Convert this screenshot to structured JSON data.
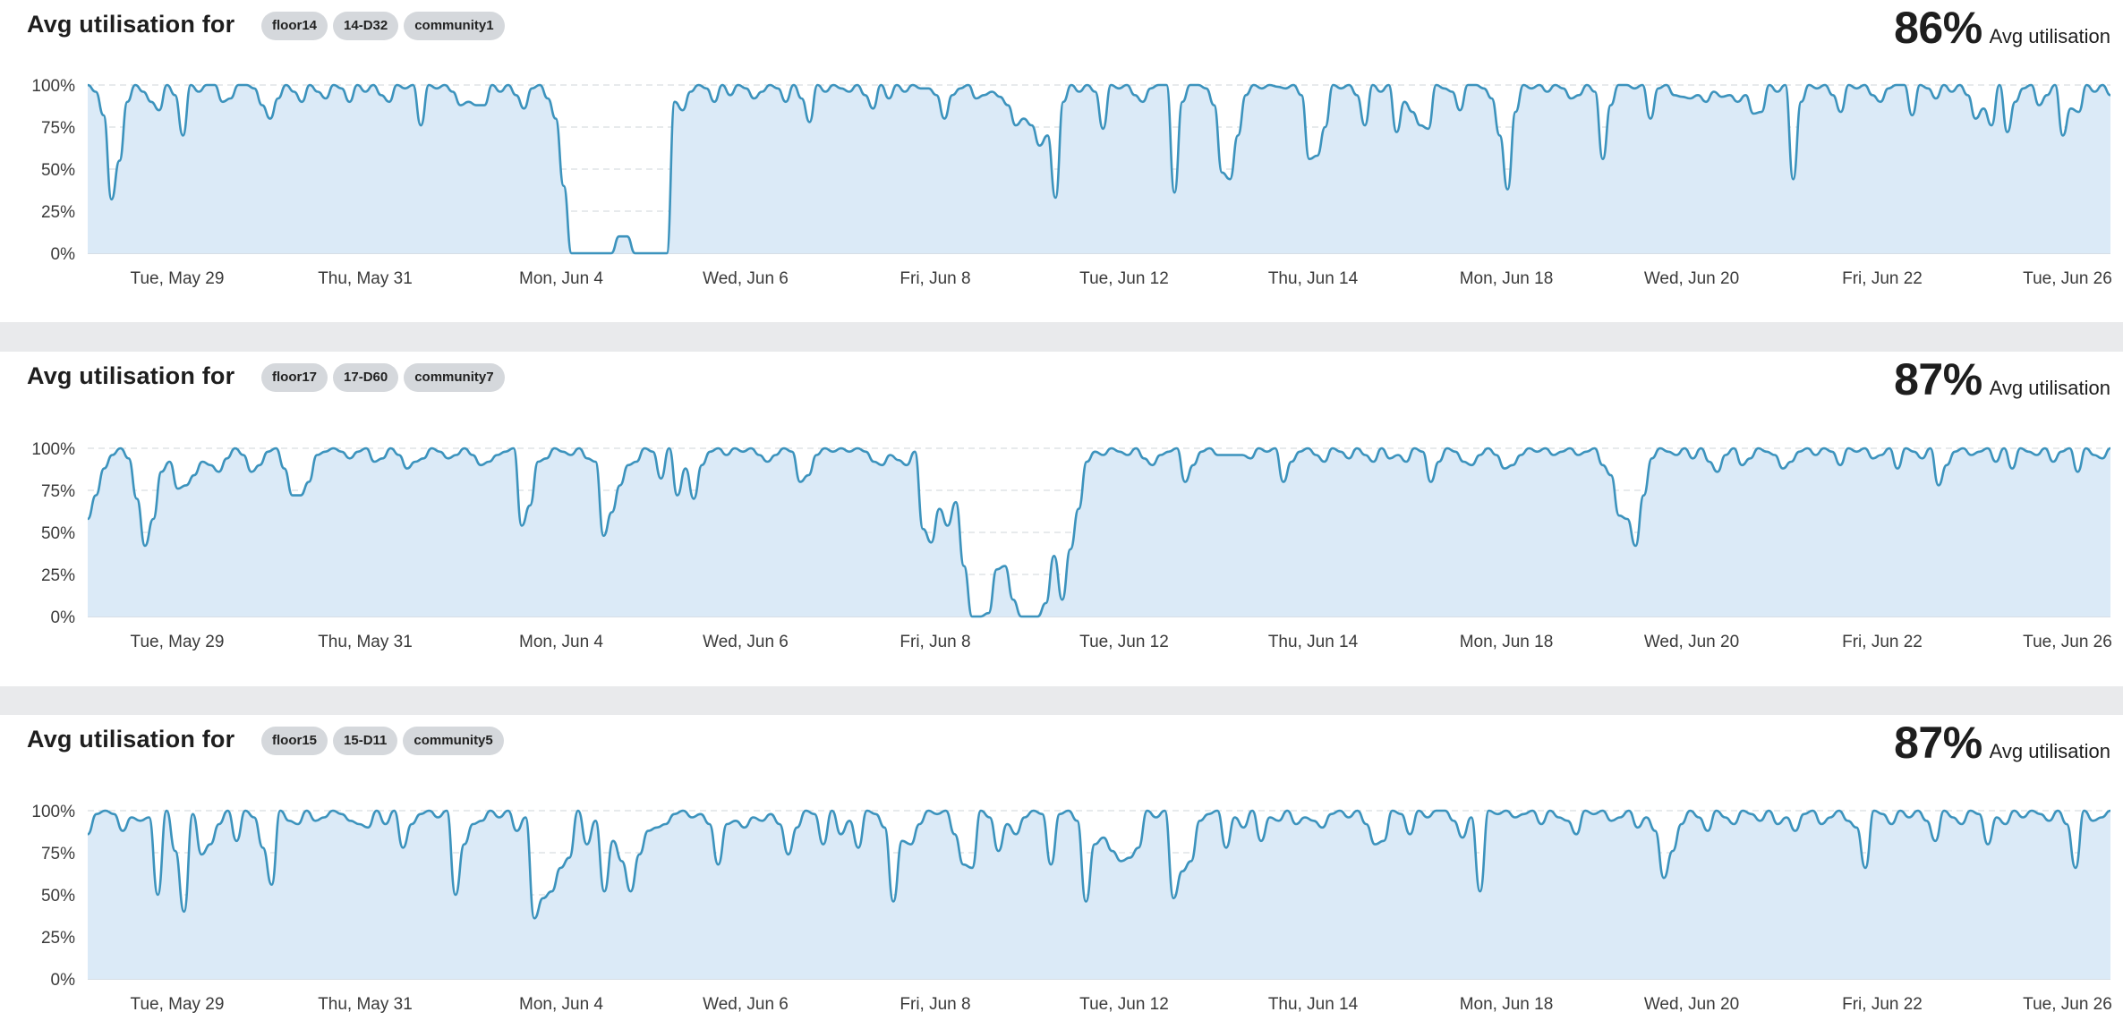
{
  "panels": [
    {
      "title": "Avg utilisation for",
      "tags": [
        "floor14",
        "14-D32",
        "community1"
      ],
      "stat_value": "86%",
      "stat_label": "Avg utilisation"
    },
    {
      "title": "Avg utilisation for",
      "tags": [
        "floor17",
        "17-D60",
        "community7"
      ],
      "stat_value": "87%",
      "stat_label": "Avg utilisation"
    },
    {
      "title": "Avg utilisation for",
      "tags": [
        "floor15",
        "15-D11",
        "community5"
      ],
      "stat_value": "87%",
      "stat_label": "Avg utilisation"
    }
  ],
  "colors": {
    "line": "#3c93bd",
    "fill": "#dbeaf7",
    "grid": "#cfd4d9",
    "background": "#ffffff",
    "separator": "#e9eaec"
  },
  "chart_data": [
    {
      "type": "area",
      "ylim": [
        0,
        100
      ],
      "yticks": [
        "0%",
        "25%",
        "50%",
        "75%",
        "100%"
      ],
      "xticks": [
        "Tue, May 29",
        "Thu, May 31",
        "Mon, Jun 4",
        "Wed, Jun 6",
        "Fri, Jun 8",
        "Tue, Jun 12",
        "Thu, Jun 14",
        "Mon, Jun 18",
        "Wed, Jun 20",
        "Fri, Jun 22",
        "Tue, Jun 26"
      ],
      "grid": true,
      "values": [
        100,
        96,
        82,
        32,
        55,
        90,
        100,
        96,
        90,
        85,
        100,
        94,
        70,
        100,
        96,
        100,
        100,
        90,
        92,
        100,
        100,
        98,
        88,
        80,
        92,
        100,
        96,
        90,
        100,
        96,
        92,
        100,
        98,
        90,
        100,
        96,
        100,
        94,
        90,
        100,
        98,
        100,
        76,
        100,
        98,
        100,
        96,
        88,
        90,
        88,
        88,
        100,
        96,
        100,
        94,
        86,
        98,
        100,
        92,
        80,
        40,
        0,
        0,
        0,
        0,
        0,
        0,
        10,
        10,
        0,
        0,
        0,
        0,
        0,
        90,
        85,
        96,
        100,
        98,
        90,
        100,
        94,
        100,
        98,
        92,
        96,
        100,
        98,
        90,
        100,
        92,
        78,
        100,
        96,
        100,
        98,
        96,
        100,
        94,
        86,
        100,
        92,
        100,
        96,
        100,
        98,
        98,
        94,
        80,
        94,
        98,
        100,
        92,
        94,
        96,
        93,
        88,
        76,
        80,
        76,
        64,
        70,
        33,
        90,
        100,
        96,
        100,
        96,
        74,
        100,
        98,
        100,
        94,
        90,
        98,
        100,
        100,
        36,
        90,
        100,
        100,
        98,
        88,
        48,
        44,
        70,
        94,
        100,
        98,
        100,
        99,
        98,
        100,
        94,
        56,
        58,
        75,
        100,
        98,
        100,
        94,
        76,
        100,
        96,
        100,
        72,
        90,
        84,
        76,
        74,
        100,
        98,
        96,
        85,
        100,
        100,
        98,
        92,
        70,
        38,
        84,
        100,
        98,
        100,
        96,
        100,
        98,
        92,
        94,
        100,
        96,
        56,
        88,
        100,
        100,
        98,
        100,
        80,
        98,
        100,
        94,
        93,
        92,
        94,
        90,
        96,
        93,
        94,
        90,
        94,
        83,
        84,
        100,
        96,
        100,
        44,
        90,
        100,
        98,
        100,
        94,
        84,
        100,
        98,
        100,
        94,
        90,
        98,
        100,
        100,
        82,
        100,
        98,
        92,
        100,
        96,
        100,
        94,
        80,
        86,
        76,
        100,
        72,
        90,
        98,
        100,
        88,
        94,
        100,
        70,
        86,
        84,
        100,
        96,
        100,
        94
      ]
    },
    {
      "type": "area",
      "ylim": [
        0,
        100
      ],
      "yticks": [
        "0%",
        "25%",
        "50%",
        "75%",
        "100%"
      ],
      "xticks": [
        "Tue, May 29",
        "Thu, May 31",
        "Mon, Jun 4",
        "Wed, Jun 6",
        "Fri, Jun 8",
        "Tue, Jun 12",
        "Thu, Jun 14",
        "Mon, Jun 18",
        "Wed, Jun 20",
        "Fri, Jun 22",
        "Tue, Jun 26"
      ],
      "grid": true,
      "values": [
        58,
        72,
        88,
        96,
        100,
        94,
        70,
        42,
        58,
        86,
        92,
        76,
        78,
        84,
        92,
        90,
        86,
        94,
        100,
        96,
        86,
        90,
        98,
        100,
        88,
        72,
        72,
        80,
        96,
        98,
        100,
        98,
        94,
        98,
        100,
        92,
        94,
        100,
        96,
        88,
        92,
        94,
        100,
        98,
        94,
        96,
        100,
        96,
        90,
        92,
        96,
        98,
        100,
        54,
        66,
        92,
        94,
        100,
        98,
        96,
        100,
        94,
        92,
        48,
        62,
        78,
        90,
        92,
        100,
        98,
        82,
        100,
        72,
        88,
        70,
        90,
        98,
        100,
        96,
        100,
        98,
        100,
        96,
        92,
        96,
        100,
        98,
        80,
        84,
        96,
        100,
        98,
        100,
        98,
        100,
        98,
        92,
        90,
        96,
        93,
        90,
        98,
        52,
        44,
        64,
        54,
        68,
        30,
        0,
        0,
        2,
        28,
        30,
        10,
        0,
        0,
        0,
        8,
        36,
        10,
        40,
        64,
        92,
        98,
        96,
        100,
        98,
        96,
        100,
        94,
        90,
        96,
        98,
        100,
        80,
        90,
        98,
        100,
        96,
        96,
        96,
        96,
        94,
        100,
        98,
        100,
        80,
        92,
        98,
        100,
        96,
        92,
        100,
        98,
        94,
        100,
        96,
        92,
        100,
        94,
        96,
        92,
        100,
        98,
        80,
        92,
        100,
        98,
        92,
        90,
        96,
        100,
        96,
        88,
        90,
        96,
        100,
        98,
        100,
        96,
        98,
        100,
        96,
        98,
        100,
        90,
        84,
        60,
        58,
        42,
        72,
        94,
        100,
        98,
        96,
        100,
        94,
        100,
        92,
        86,
        96,
        100,
        90,
        94,
        100,
        98,
        96,
        88,
        92,
        98,
        100,
        96,
        100,
        98,
        90,
        100,
        98,
        100,
        94,
        96,
        100,
        88,
        100,
        98,
        94,
        100,
        78,
        90,
        98,
        100,
        96,
        98,
        100,
        92,
        100,
        88,
        100,
        98,
        96,
        100,
        92,
        98,
        100,
        86,
        100,
        96,
        94,
        100
      ]
    },
    {
      "type": "area",
      "ylim": [
        0,
        100
      ],
      "yticks": [
        "0%",
        "25%",
        "50%",
        "75%",
        "100%"
      ],
      "xticks": [
        "Tue, May 29",
        "Thu, May 31",
        "Mon, Jun 4",
        "Wed, Jun 6",
        "Fri, Jun 8",
        "Tue, Jun 12",
        "Thu, Jun 14",
        "Mon, Jun 18",
        "Wed, Jun 20",
        "Fri, Jun 22",
        "Tue, Jun 26"
      ],
      "grid": true,
      "values": [
        86,
        98,
        100,
        98,
        88,
        96,
        94,
        96,
        50,
        100,
        76,
        40,
        98,
        74,
        80,
        92,
        100,
        82,
        100,
        96,
        78,
        56,
        100,
        94,
        92,
        100,
        94,
        96,
        100,
        98,
        94,
        92,
        90,
        100,
        92,
        100,
        78,
        92,
        98,
        100,
        96,
        100,
        50,
        80,
        92,
        94,
        100,
        96,
        100,
        88,
        96,
        36,
        48,
        52,
        66,
        72,
        100,
        80,
        94,
        52,
        82,
        70,
        52,
        74,
        88,
        90,
        92,
        98,
        100,
        96,
        98,
        92,
        68,
        92,
        94,
        90,
        96,
        94,
        98,
        92,
        74,
        90,
        100,
        98,
        80,
        100,
        86,
        94,
        78,
        100,
        98,
        90,
        46,
        82,
        80,
        92,
        100,
        98,
        100,
        86,
        68,
        66,
        100,
        96,
        76,
        92,
        86,
        96,
        100,
        98,
        68,
        98,
        100,
        94,
        46,
        80,
        84,
        76,
        70,
        72,
        78,
        100,
        96,
        100,
        48,
        64,
        70,
        94,
        98,
        100,
        78,
        96,
        90,
        100,
        82,
        96,
        94,
        100,
        92,
        96,
        94,
        90,
        98,
        100,
        96,
        100,
        92,
        80,
        82,
        100,
        98,
        86,
        100,
        96,
        100,
        100,
        94,
        84,
        96,
        52,
        100,
        98,
        100,
        96,
        98,
        100,
        92,
        100,
        96,
        94,
        86,
        100,
        98,
        100,
        94,
        96,
        100,
        90,
        96,
        88,
        60,
        76,
        92,
        100,
        96,
        88,
        100,
        96,
        92,
        100,
        98,
        94,
        100,
        92,
        96,
        88,
        98,
        100,
        92,
        96,
        100,
        94,
        90,
        66,
        100,
        98,
        92,
        100,
        96,
        100,
        94,
        82,
        100,
        96,
        92,
        100,
        98,
        80,
        96,
        92,
        100,
        96,
        100,
        98,
        94,
        100,
        92,
        66,
        100,
        94,
        96,
        100
      ]
    }
  ]
}
